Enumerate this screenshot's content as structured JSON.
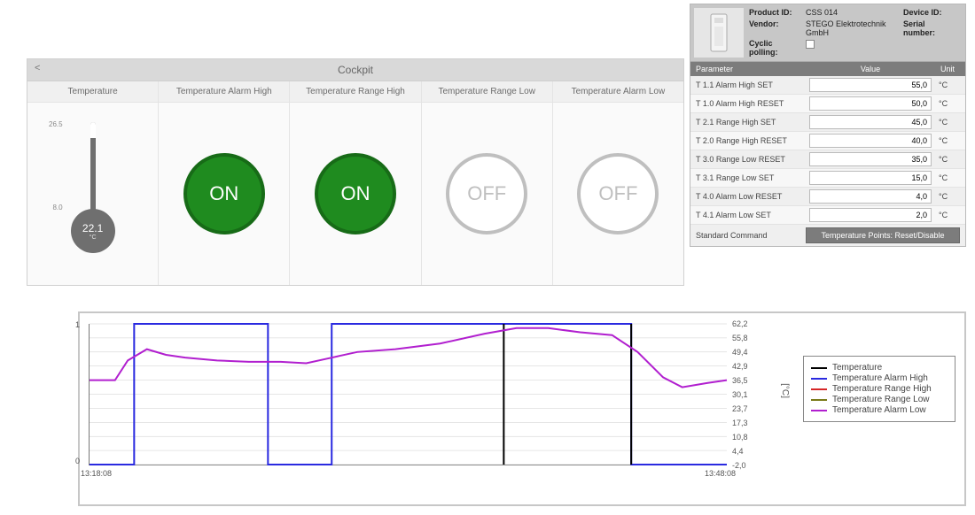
{
  "cockpit": {
    "title": "Cockpit",
    "back_glyph": "<",
    "columns": [
      {
        "header": "Temperature"
      },
      {
        "header": "Temperature Alarm High"
      },
      {
        "header": "Temperature Range High"
      },
      {
        "header": "Temperature Range Low"
      },
      {
        "header": "Temperature Alarm Low"
      }
    ],
    "thermometer": {
      "value": "22.1",
      "unit": "°C",
      "scale_max": "26.5",
      "scale_min": "8.0",
      "stem_color": "#6f6f6f",
      "bulb_color": "#6f6f6f"
    },
    "indicators": {
      "alarm_high": {
        "state": "ON",
        "on": true
      },
      "range_high": {
        "state": "ON",
        "on": true
      },
      "range_low": {
        "state": "OFF",
        "on": false
      },
      "alarm_low": {
        "state": "OFF",
        "on": false
      },
      "on_bg": "#1f8b1f",
      "off_border": "#bfbfbf"
    }
  },
  "info": {
    "labels": {
      "product_id": "Product ID:",
      "vendor": "Vendor:",
      "cyclic": "Cyclic polling:",
      "device_id": "Device ID:",
      "serial": "Serial number:"
    },
    "product_id": "CSS 014",
    "vendor": "STEGO Elektrotechnik GmbH",
    "device_id": "",
    "serial": "",
    "cyclic_polling": false
  },
  "params": {
    "head": {
      "parameter": "Parameter",
      "value": "Value",
      "unit": "Unit"
    },
    "unit": "°C",
    "rows": [
      {
        "name": "T 1.1 Alarm High SET",
        "value": "55,0"
      },
      {
        "name": "T 1.0 Alarm High RESET",
        "value": "50,0"
      },
      {
        "name": "T 2.1 Range High SET",
        "value": "45,0"
      },
      {
        "name": "T 2.0 Range High RESET",
        "value": "40,0"
      },
      {
        "name": "T 3.0 Range Low RESET",
        "value": "35,0"
      },
      {
        "name": "T 3.1 Range Low SET",
        "value": "15,0"
      },
      {
        "name": "T 4.0 Alarm Low RESET",
        "value": "4,0"
      },
      {
        "name": "T 4.1 Alarm Low SET",
        "value": "2,0"
      }
    ],
    "footer_label": "Standard Command",
    "footer_button": "Temperature Points: Reset/Disable"
  },
  "chart": {
    "type": "line",
    "background_color": "#ffffff",
    "grid_color": "#cccccc",
    "left_axis": {
      "min": 0,
      "max": 1,
      "ticks": [
        "0",
        "1"
      ]
    },
    "right_axis": {
      "unit": "[°C]",
      "ticks": [
        "62,2",
        "55,8",
        "49,4",
        "42,9",
        "36,5",
        "30,1",
        "23,7",
        "17,3",
        "10,8",
        "4,4",
        "-2,0"
      ]
    },
    "x_axis": {
      "start": "13:18:08",
      "end": "13:48:08"
    },
    "legend": [
      {
        "label": "Temperature",
        "color": "#000000"
      },
      {
        "label": "Temperature Alarm High",
        "color": "#2a2ae0"
      },
      {
        "label": "Temperature Range High",
        "color": "#d62728"
      },
      {
        "label": "Temperature Range Low",
        "color": "#7a7a18"
      },
      {
        "label": "Temperature Alarm Low",
        "color": "#b11fcf"
      }
    ],
    "series": {
      "temperature": {
        "color": "#b11fcf",
        "points": [
          [
            0.0,
            0.6
          ],
          [
            0.04,
            0.6
          ],
          [
            0.06,
            0.74
          ],
          [
            0.09,
            0.82
          ],
          [
            0.12,
            0.78
          ],
          [
            0.15,
            0.76
          ],
          [
            0.2,
            0.74
          ],
          [
            0.25,
            0.73
          ],
          [
            0.3,
            0.73
          ],
          [
            0.34,
            0.72
          ],
          [
            0.38,
            0.76
          ],
          [
            0.42,
            0.8
          ],
          [
            0.48,
            0.82
          ],
          [
            0.55,
            0.86
          ],
          [
            0.62,
            0.93
          ],
          [
            0.67,
            0.97
          ],
          [
            0.72,
            0.97
          ],
          [
            0.77,
            0.94
          ],
          [
            0.82,
            0.92
          ],
          [
            0.86,
            0.8
          ],
          [
            0.9,
            0.62
          ],
          [
            0.93,
            0.55
          ],
          [
            0.97,
            0.58
          ],
          [
            1.0,
            0.6
          ]
        ]
      },
      "alarm_high_sq": {
        "color": "#2a2ae0",
        "edges": [
          [
            0.07,
            0.28
          ],
          [
            0.38,
            0.85
          ]
        ],
        "baseline": 0.0
      },
      "black_bars": {
        "color": "#000000",
        "xs": [
          0.65,
          0.85
        ]
      }
    }
  }
}
